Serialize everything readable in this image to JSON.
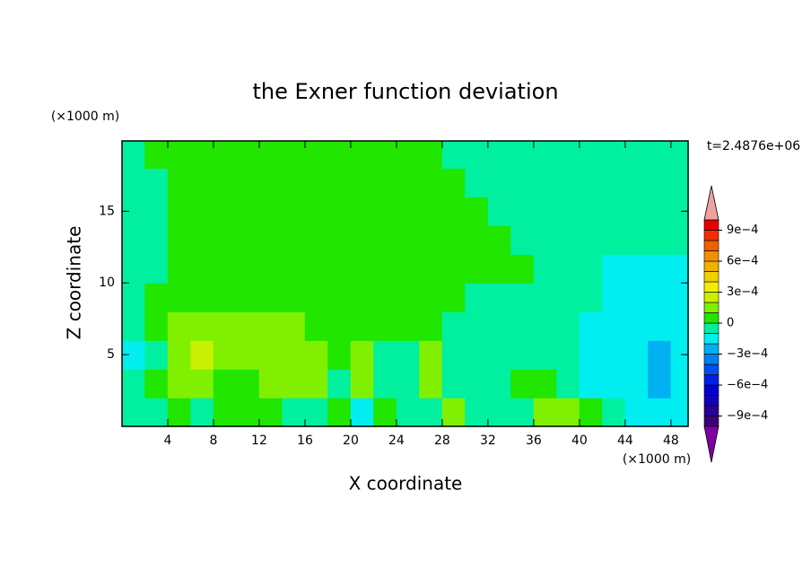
{
  "chart_data": {
    "type": "contour",
    "title": "the Exner function deviation",
    "xlabel": "X coordinate",
    "ylabel": "Z coordinate",
    "x_unit": "(×1000 m)",
    "y_unit": "(×1000 m)",
    "annotation": "t=2.4876e+06",
    "xlim": [
      0,
      49.5
    ],
    "ylim": [
      0,
      19.9
    ],
    "xticks": [
      4,
      8,
      12,
      16,
      20,
      24,
      28,
      32,
      36,
      40,
      44,
      48
    ],
    "yticks": [
      5,
      10,
      15
    ],
    "x": [
      1,
      3,
      5,
      7,
      9,
      11,
      13,
      15,
      17,
      19,
      21,
      23,
      25,
      27,
      29,
      31,
      33,
      35,
      37,
      39,
      41,
      43,
      45,
      47,
      49
    ],
    "y": [
      1,
      3,
      5,
      7,
      9,
      11,
      13,
      15,
      17,
      19
    ],
    "z": [
      [
        -5e-05,
        -5e-05,
        5e-05,
        -5e-05,
        5e-05,
        5e-05,
        5e-05,
        -5e-05,
        -5e-05,
        5e-05,
        -0.00015,
        5e-05,
        -5e-05,
        -5e-05,
        0.00015,
        -5e-05,
        -5e-05,
        -5e-05,
        0.00015,
        0.00015,
        5e-05,
        -5e-05,
        -0.00015,
        -0.00015,
        -0.00015
      ],
      [
        -5e-05,
        5e-05,
        0.00015,
        0.00015,
        5e-05,
        5e-05,
        0.00015,
        0.00015,
        0.00015,
        -5e-05,
        0.00015,
        -5e-05,
        -5e-05,
        0.00015,
        -5e-05,
        -5e-05,
        -5e-05,
        5e-05,
        5e-05,
        -5e-05,
        -0.00015,
        -0.00015,
        -0.00015,
        -0.00025,
        -0.00015
      ],
      [
        -0.00015,
        -5e-05,
        0.00015,
        0.00025,
        0.00015,
        0.00015,
        0.00015,
        0.00015,
        0.00015,
        5e-05,
        0.00015,
        -5e-05,
        -5e-05,
        0.00015,
        -5e-05,
        -5e-05,
        -5e-05,
        -5e-05,
        -5e-05,
        -5e-05,
        -0.00015,
        -0.00015,
        -0.00015,
        -0.00025,
        -0.00015
      ],
      [
        -5e-05,
        5e-05,
        0.00015,
        0.00015,
        0.00015,
        0.00015,
        0.00015,
        0.00015,
        5e-05,
        5e-05,
        5e-05,
        5e-05,
        5e-05,
        5e-05,
        -5e-05,
        -5e-05,
        -5e-05,
        -5e-05,
        -5e-05,
        -5e-05,
        -0.00015,
        -0.00015,
        -0.00015,
        -0.00015,
        -0.00015
      ],
      [
        -5e-05,
        5e-05,
        5e-05,
        5e-05,
        5e-05,
        5e-05,
        5e-05,
        5e-05,
        5e-05,
        5e-05,
        5e-05,
        5e-05,
        5e-05,
        5e-05,
        5e-05,
        -5e-05,
        -5e-05,
        -5e-05,
        -5e-05,
        -5e-05,
        -5e-05,
        -0.00015,
        -0.00015,
        -0.00015,
        -0.00015
      ],
      [
        -5e-05,
        -5e-05,
        5e-05,
        5e-05,
        5e-05,
        5e-05,
        5e-05,
        5e-05,
        5e-05,
        5e-05,
        5e-05,
        5e-05,
        5e-05,
        5e-05,
        5e-05,
        5e-05,
        5e-05,
        5e-05,
        -5e-05,
        -5e-05,
        -5e-05,
        -0.00015,
        -0.00015,
        -0.00015,
        -0.00015
      ],
      [
        -5e-05,
        -5e-05,
        5e-05,
        5e-05,
        5e-05,
        5e-05,
        5e-05,
        5e-05,
        5e-05,
        5e-05,
        5e-05,
        5e-05,
        5e-05,
        5e-05,
        5e-05,
        5e-05,
        5e-05,
        -5e-05,
        -5e-05,
        -5e-05,
        -5e-05,
        -5e-05,
        -5e-05,
        -5e-05,
        -5e-05
      ],
      [
        -5e-05,
        -5e-05,
        5e-05,
        5e-05,
        5e-05,
        5e-05,
        5e-05,
        5e-05,
        5e-05,
        5e-05,
        5e-05,
        5e-05,
        5e-05,
        5e-05,
        5e-05,
        5e-05,
        -5e-05,
        -5e-05,
        -5e-05,
        -5e-05,
        -5e-05,
        -5e-05,
        -5e-05,
        -5e-05,
        -5e-05
      ],
      [
        -5e-05,
        -5e-05,
        5e-05,
        5e-05,
        5e-05,
        5e-05,
        5e-05,
        5e-05,
        5e-05,
        5e-05,
        5e-05,
        5e-05,
        5e-05,
        5e-05,
        5e-05,
        -5e-05,
        -5e-05,
        -5e-05,
        -5e-05,
        -5e-05,
        -5e-05,
        -5e-05,
        -5e-05,
        -5e-05,
        -5e-05
      ],
      [
        -5e-05,
        5e-05,
        5e-05,
        5e-05,
        5e-05,
        5e-05,
        5e-05,
        5e-05,
        5e-05,
        5e-05,
        5e-05,
        5e-05,
        5e-05,
        5e-05,
        -5e-05,
        -5e-05,
        -5e-05,
        -5e-05,
        -5e-05,
        -5e-05,
        -5e-05,
        -5e-05,
        -5e-05,
        -5e-05,
        -5e-05
      ]
    ],
    "levels": [
      -0.001,
      -0.0009,
      -0.0008,
      -0.0007,
      -0.0006,
      -0.0005,
      -0.0004,
      -0.0003,
      -0.0002,
      -0.0001,
      0,
      0.0001,
      0.0002,
      0.0003,
      0.0004,
      0.0005,
      0.0006,
      0.0007,
      0.0008,
      0.0009,
      0.001
    ],
    "colors": [
      "#3c0078",
      "#2a0096",
      "#1400b4",
      "#0000d2",
      "#0020e6",
      "#0050f0",
      "#0080f0",
      "#00b0f0",
      "#00eef0",
      "#00f0a0",
      "#20e600",
      "#80f000",
      "#c8f000",
      "#f0f000",
      "#f0d000",
      "#f0b000",
      "#f09000",
      "#f06000",
      "#f03000",
      "#e60000"
    ],
    "under_color": "#8000a0",
    "over_color": "#f0a0a0",
    "colorbar_ticks": [
      {
        "value": -0.0009,
        "label": "−9e−4"
      },
      {
        "value": -0.0006,
        "label": "−6e−4"
      },
      {
        "value": -0.0003,
        "label": "−3e−4"
      },
      0,
      {
        "value": 0.0003,
        "label": "3e−4"
      },
      {
        "value": 0.0006,
        "label": "6e−4"
      },
      {
        "value": 0.0009,
        "label": "9e−4"
      }
    ]
  }
}
